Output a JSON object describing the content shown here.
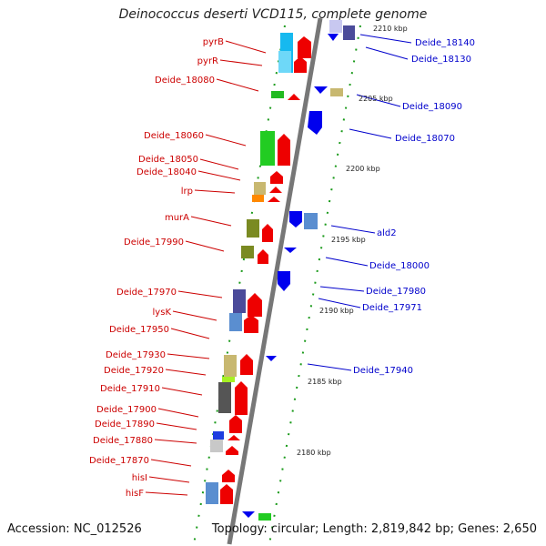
{
  "title": "Deinococcus deserti VCD115, complete genome",
  "accession": "Accession: NC_012526",
  "topology": "Topology: circular; Length: 2,819,842 bp; Genes: 2,650",
  "colors": {
    "forward_label": "#cc0000",
    "reverse_label": "#0000cc",
    "backbone": "#777777",
    "tick_dots": "#1a9a1a",
    "forward_arrow": "#ee0000",
    "reverse_arrow": "#0000ee"
  },
  "scale_labels": [
    "2210 kbp",
    "2205 kbp",
    "2200 kbp",
    "2195 kbp",
    "2190 kbp",
    "2185 kbp",
    "2180 kbp"
  ],
  "left_genes": [
    "pyrB",
    "pyrR",
    "Deide_18080",
    "Deide_18060",
    "Deide_18050",
    "Deide_18040",
    "lrp",
    "murA",
    "Deide_17990",
    "Deide_17970",
    "lysK",
    "Deide_17950",
    "Deide_17930",
    "Deide_17920",
    "Deide_17910",
    "Deide_17900",
    "Deide_17890",
    "Deide_17880",
    "Deide_17870",
    "hisI",
    "hisF"
  ],
  "right_genes": [
    "Deide_18140",
    "Deide_18130",
    "Deide_18090",
    "Deide_18070",
    "ald2",
    "Deide_18000",
    "Deide_17980",
    "Deide_17971",
    "Deide_17940"
  ]
}
